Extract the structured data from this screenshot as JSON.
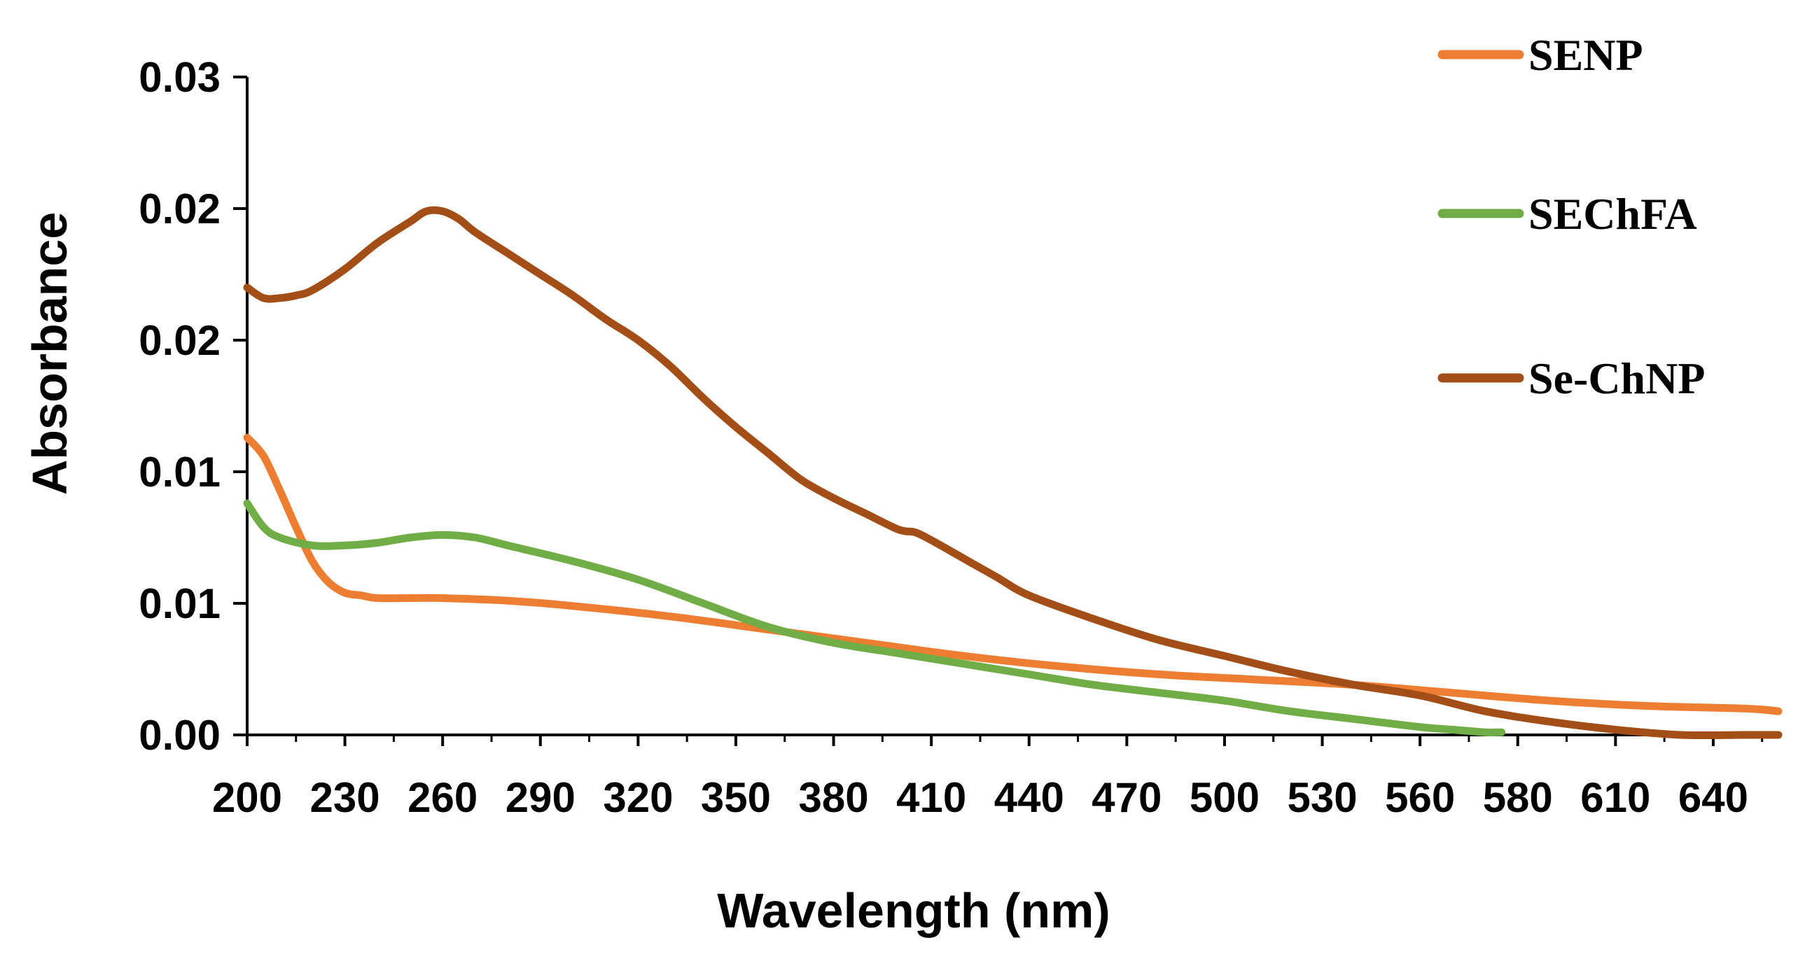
{
  "chart_data": {
    "type": "line",
    "title": "",
    "xlabel": "Wavelength (nm)",
    "ylabel": "Absorbance",
    "xlim": [
      200,
      670
    ],
    "ylim": [
      0.0,
      0.025
    ],
    "x_ticks": [
      200,
      230,
      260,
      290,
      320,
      350,
      380,
      410,
      440,
      470,
      500,
      530,
      560,
      580,
      610,
      640
    ],
    "x_tick_labels": [
      "200",
      "230",
      "260",
      "290",
      "320",
      "350",
      "380",
      "410",
      "440",
      "470",
      "500",
      "530",
      "560",
      "580",
      "610",
      "640"
    ],
    "y_ticks": [
      0.0,
      0.005,
      0.01,
      0.015,
      0.02,
      0.025
    ],
    "y_tick_labels": [
      "0.00",
      "0.01",
      "0.01",
      "0.02",
      "0.02",
      "0.03"
    ],
    "grid": false,
    "legend_position": "top-right",
    "series": [
      {
        "name": "SENP",
        "color": "#ED7D31",
        "x": [
          200,
          205,
          210,
          215,
          220,
          225,
          230,
          235,
          240,
          250,
          260,
          280,
          300,
          330,
          360,
          390,
          420,
          450,
          480,
          510,
          540,
          570,
          600,
          630,
          660,
          670
        ],
        "y": [
          0.0113,
          0.0106,
          0.0093,
          0.0079,
          0.0066,
          0.0058,
          0.0054,
          0.0053,
          0.0052,
          0.0052,
          0.0052,
          0.0051,
          0.0049,
          0.0045,
          0.004,
          0.0035,
          0.003,
          0.0026,
          0.0023,
          0.0021,
          0.0019,
          0.0016,
          0.0013,
          0.0011,
          0.001,
          0.0009
        ]
      },
      {
        "name": "SEChFA",
        "color": "#70AD47",
        "x": [
          200,
          205,
          210,
          220,
          230,
          240,
          250,
          260,
          270,
          280,
          300,
          320,
          340,
          360,
          380,
          400,
          420,
          440,
          460,
          480,
          500,
          520,
          540,
          560,
          570,
          580,
          585
        ],
        "y": [
          0.0088,
          0.0079,
          0.0075,
          0.0072,
          0.0072,
          0.0073,
          0.0075,
          0.0076,
          0.0075,
          0.0072,
          0.0066,
          0.0059,
          0.005,
          0.0041,
          0.0035,
          0.0031,
          0.0027,
          0.0023,
          0.0019,
          0.0016,
          0.0013,
          0.0009,
          0.0006,
          0.0003,
          0.0002,
          0.0001,
          0.0001
        ]
      },
      {
        "name": "Se-ChNP",
        "color": "#A34E16",
        "x": [
          200,
          205,
          210,
          215,
          220,
          230,
          240,
          250,
          255,
          260,
          265,
          270,
          280,
          290,
          300,
          310,
          320,
          330,
          340,
          350,
          360,
          370,
          380,
          390,
          400,
          405,
          410,
          420,
          430,
          440,
          460,
          480,
          500,
          520,
          540,
          560,
          580,
          600,
          620,
          640,
          660,
          670
        ],
        "y": [
          0.017,
          0.0166,
          0.0166,
          0.0167,
          0.0169,
          0.0177,
          0.0187,
          0.0195,
          0.0199,
          0.0199,
          0.0196,
          0.0191,
          0.0183,
          0.0175,
          0.0167,
          0.0158,
          0.015,
          0.014,
          0.0128,
          0.0117,
          0.0107,
          0.0097,
          0.009,
          0.0084,
          0.0078,
          0.0077,
          0.0074,
          0.0067,
          0.006,
          0.0053,
          0.0044,
          0.0036,
          0.003,
          0.0024,
          0.0019,
          0.0015,
          0.0009,
          0.0005,
          0.0002,
          0.0,
          0.0,
          0.0
        ]
      }
    ]
  }
}
